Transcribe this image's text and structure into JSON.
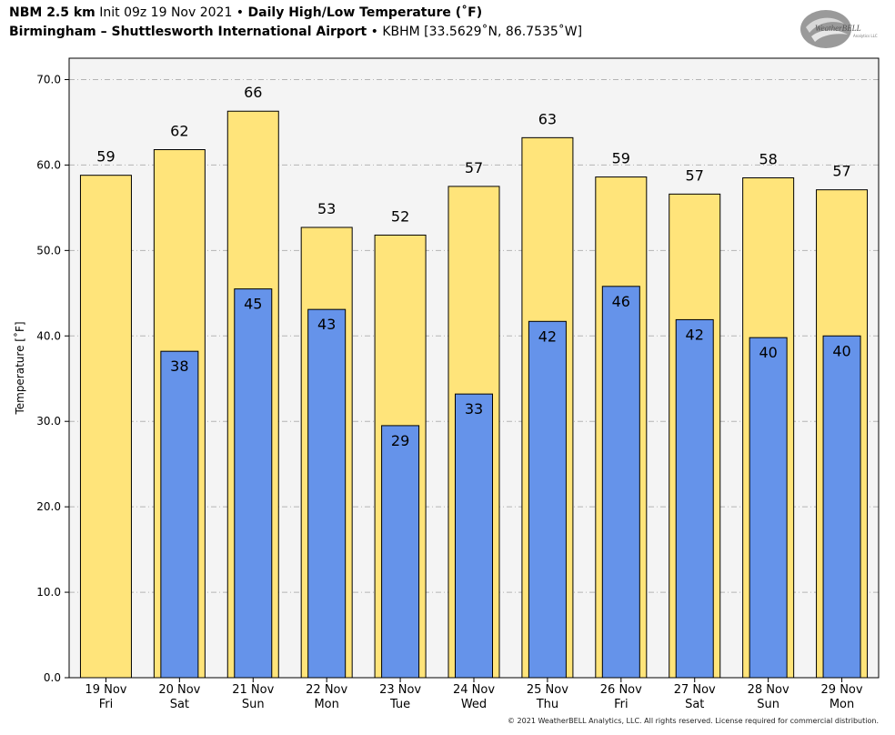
{
  "header": {
    "model": "NBM 2.5 km",
    "init": "Init 09z 19 Nov 2021",
    "sep": " • ",
    "product": "Daily High/Low Temperature (˚F)",
    "station": "Birmingham – Shuttlesworth International Airport",
    "station_id": "KBHM [33.5629˚N, 86.7535˚W]"
  },
  "logo": {
    "text": "WeatherBELL",
    "subtext": "Analytics LLC"
  },
  "copyright": "© 2021 WeatherBELL Analytics, LLC. All rights reserved. License required for commercial distribution.",
  "colors": {
    "high": "#FFE47A",
    "low": "#6593EA",
    "plot_bg": "#F4F4F4",
    "outline": "#000000"
  },
  "chart_data": {
    "type": "bar",
    "ylabel": "Temperature [˚F]",
    "ylim": [
      0,
      72.5
    ],
    "yticks": [
      "0.0",
      "10.0",
      "20.0",
      "30.0",
      "40.0",
      "50.0",
      "60.0",
      "70.0"
    ],
    "grid": true,
    "categories": [
      [
        "19 Nov",
        "Fri"
      ],
      [
        "20 Nov",
        "Sat"
      ],
      [
        "21 Nov",
        "Sun"
      ],
      [
        "22 Nov",
        "Mon"
      ],
      [
        "23 Nov",
        "Tue"
      ],
      [
        "24 Nov",
        "Wed"
      ],
      [
        "25 Nov",
        "Thu"
      ],
      [
        "26 Nov",
        "Fri"
      ],
      [
        "27 Nov",
        "Sat"
      ],
      [
        "28 Nov",
        "Sun"
      ],
      [
        "29 Nov",
        "Mon"
      ]
    ],
    "series": [
      {
        "values": [
          58.8,
          61.8,
          66.3,
          52.7,
          51.8,
          57.5,
          63.2,
          58.6,
          56.6,
          58.5,
          57.1
        ],
        "labels": [
          "59",
          "62",
          "66",
          "53",
          "52",
          "57",
          "63",
          "59",
          "57",
          "58",
          "57"
        ]
      },
      {
        "values": [
          null,
          38.2,
          45.5,
          43.1,
          29.5,
          33.2,
          41.7,
          45.8,
          41.9,
          39.8,
          40.0
        ],
        "labels": [
          "",
          "38",
          "45",
          "43",
          "29",
          "33",
          "42",
          "46",
          "42",
          "40",
          "40"
        ]
      }
    ]
  }
}
